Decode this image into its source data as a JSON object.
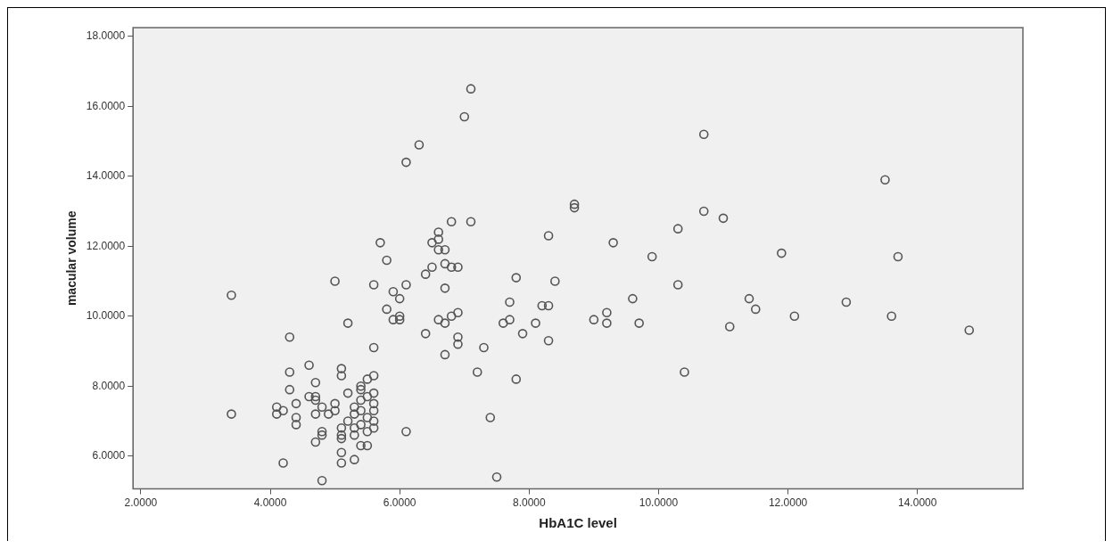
{
  "chart_data": {
    "type": "scatter",
    "xlabel": "HbA1C level",
    "ylabel": "macular volume",
    "marker": "circle",
    "grid": false,
    "legend": false,
    "xlim": [
      1.88,
      15.63
    ],
    "ylim": [
      5.06,
      18.25
    ],
    "xticks": [
      {
        "value": 2,
        "label": "2.0000"
      },
      {
        "value": 4,
        "label": "4.0000"
      },
      {
        "value": 6,
        "label": "6.0000"
      },
      {
        "value": 8,
        "label": "8.0000"
      },
      {
        "value": 10,
        "label": "10.0000"
      },
      {
        "value": 12,
        "label": "12.0000"
      },
      {
        "value": 14,
        "label": "14.0000"
      }
    ],
    "yticks": [
      {
        "value": 6,
        "label": "6.0000"
      },
      {
        "value": 8,
        "label": "8.0000"
      },
      {
        "value": 10,
        "label": "10.0000"
      },
      {
        "value": 12,
        "label": "12.0000"
      },
      {
        "value": 14,
        "label": "14.0000"
      },
      {
        "value": 16,
        "label": "16.0000"
      },
      {
        "value": 18,
        "label": "18.0000"
      }
    ],
    "series": [
      {
        "color": "#555555",
        "x": [
          3.4,
          3.4,
          4.2,
          4.8,
          4.3,
          4.6,
          4.3,
          4.7,
          4.3,
          4.1,
          4.1,
          4.2,
          4.4,
          4.4,
          4.4,
          4.7,
          4.7,
          4.6,
          4.8,
          4.9,
          4.7,
          4.7,
          4.8,
          4.8,
          5.0,
          5.1,
          5.1,
          5.0,
          5.1,
          5.1,
          5.1,
          5.1,
          5.1,
          5.3,
          5.2,
          5.2,
          5.3,
          5.3,
          5.3,
          5.3,
          5.4,
          5.4,
          5.4,
          5.4,
          5.4,
          5.4,
          5.5,
          5.5,
          5.5,
          5.5,
          5.5,
          5.6,
          5.6,
          5.6,
          5.6,
          5.6,
          5.6,
          5.2,
          5.0,
          5.6,
          5.6,
          5.7,
          5.8,
          5.8,
          5.9,
          5.9,
          6.0,
          6.0,
          6.0,
          6.1,
          6.1,
          6.1,
          6.3,
          6.4,
          6.4,
          6.5,
          6.5,
          6.6,
          6.6,
          6.6,
          6.6,
          6.7,
          6.7,
          6.7,
          6.7,
          6.7,
          6.8,
          6.8,
          6.8,
          6.9,
          6.9,
          6.9,
          6.9,
          7.0,
          7.1,
          7.1,
          7.2,
          7.3,
          7.4,
          7.5,
          7.6,
          7.7,
          7.7,
          7.8,
          7.8,
          7.9,
          8.1,
          8.2,
          8.3,
          8.3,
          8.3,
          8.4,
          8.7,
          8.7,
          9.0,
          9.2,
          9.2,
          9.3,
          9.6,
          9.7,
          9.9,
          10.3,
          10.3,
          10.4,
          10.7,
          10.7,
          11.0,
          11.1,
          11.4,
          11.5,
          11.9,
          12.1,
          12.9,
          13.5,
          13.6,
          13.7,
          14.8
        ],
        "values": [
          10.6,
          7.2,
          5.8,
          5.3,
          9.4,
          8.6,
          8.4,
          8.1,
          7.9,
          7.4,
          7.2,
          7.3,
          7.5,
          7.1,
          6.9,
          7.7,
          7.6,
          7.7,
          7.4,
          7.2,
          7.2,
          6.4,
          6.7,
          6.6,
          7.5,
          8.5,
          8.3,
          7.3,
          6.8,
          6.6,
          6.5,
          6.1,
          5.8,
          5.9,
          7.8,
          7.0,
          7.4,
          7.2,
          6.8,
          6.6,
          8.0,
          7.9,
          7.6,
          7.3,
          6.9,
          6.3,
          8.2,
          7.7,
          7.1,
          6.3,
          6.7,
          8.3,
          7.8,
          7.5,
          7.3,
          7.0,
          6.8,
          9.8,
          11.0,
          9.1,
          10.9,
          12.1,
          11.6,
          10.2,
          10.7,
          9.9,
          10.5,
          10.0,
          9.9,
          10.9,
          6.7,
          14.4,
          14.9,
          11.2,
          9.5,
          11.4,
          12.1,
          12.4,
          12.2,
          11.9,
          9.9,
          11.9,
          11.5,
          10.8,
          9.8,
          8.9,
          12.7,
          11.4,
          10.0,
          11.4,
          10.1,
          9.4,
          9.2,
          15.7,
          16.5,
          12.7,
          8.4,
          9.1,
          7.1,
          5.4,
          9.8,
          10.4,
          9.9,
          11.1,
          8.2,
          9.5,
          9.8,
          10.3,
          10.3,
          12.3,
          9.3,
          11.0,
          13.2,
          13.1,
          9.9,
          10.1,
          9.8,
          12.1,
          10.5,
          9.8,
          11.7,
          12.5,
          10.9,
          8.4,
          15.2,
          13.0,
          12.8,
          9.7,
          10.5,
          10.2,
          11.8,
          10.0,
          10.4,
          13.9,
          10.0,
          11.7,
          9.6
        ]
      }
    ]
  }
}
